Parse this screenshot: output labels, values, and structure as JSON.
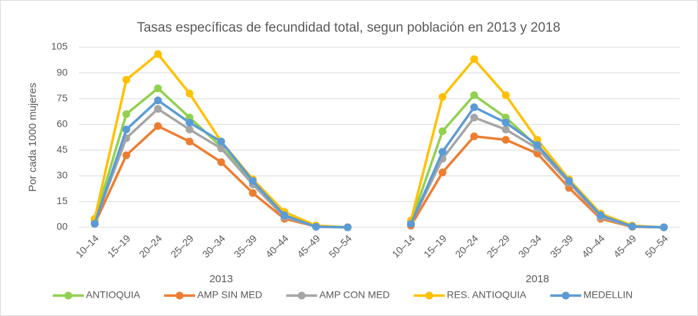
{
  "chart_data": {
    "type": "line",
    "title": "Tasas específicas de fecundidad total, segun población en 2013 y 2018",
    "y_label": "Por cada 1000 mujeres",
    "categories": [
      "10–14",
      "15–19",
      "20–24",
      "25–29",
      "30–34",
      "35–39",
      "40–44",
      "45–49",
      "50–54",
      null,
      "10–14",
      "15–19",
      "20–24",
      "25–29",
      "30–34",
      "35–39",
      "40–44",
      "45–49",
      "50–54"
    ],
    "groups": [
      "2013",
      "2018"
    ],
    "series": [
      {
        "name": "ANTIOQUIA",
        "color": "#92d050",
        "values": [
          4,
          66,
          81,
          64,
          47,
          27,
          7,
          1,
          0,
          null,
          3,
          56,
          77,
          64,
          47,
          27,
          7,
          0.7,
          0
        ]
      },
      {
        "name": "AMP SIN MED",
        "color": "#ed7d31",
        "values": [
          2,
          42,
          59,
          50,
          38,
          20,
          5,
          0.5,
          0,
          null,
          1,
          32,
          53,
          51,
          43,
          23,
          5,
          0.3,
          0
        ]
      },
      {
        "name": "AMP CON MED",
        "color": "#a5a5a5",
        "values": [
          3,
          52,
          69,
          57,
          46,
          25,
          6,
          0.5,
          0,
          null,
          2,
          40,
          64,
          57,
          46,
          26,
          6,
          0.5,
          0
        ]
      },
      {
        "name": "RES. ANTIOQUIA",
        "color": "#ffc000",
        "values": [
          5,
          86,
          101,
          78,
          50,
          28,
          9,
          1,
          0,
          null,
          4,
          76,
          98,
          77,
          51,
          28,
          8,
          1,
          0
        ]
      },
      {
        "name": "MEDELLIN",
        "color": "#5b9bd5",
        "values": [
          2,
          57,
          74,
          61,
          50,
          27,
          7,
          0.3,
          0,
          null,
          2,
          44,
          70,
          61,
          48,
          27,
          7,
          0.5,
          0
        ]
      }
    ],
    "ylim": [
      0,
      105
    ],
    "yticks": [
      {
        "value": 0,
        "label": "00"
      },
      15,
      30,
      45,
      60,
      75,
      90,
      105
    ],
    "grid": true
  }
}
